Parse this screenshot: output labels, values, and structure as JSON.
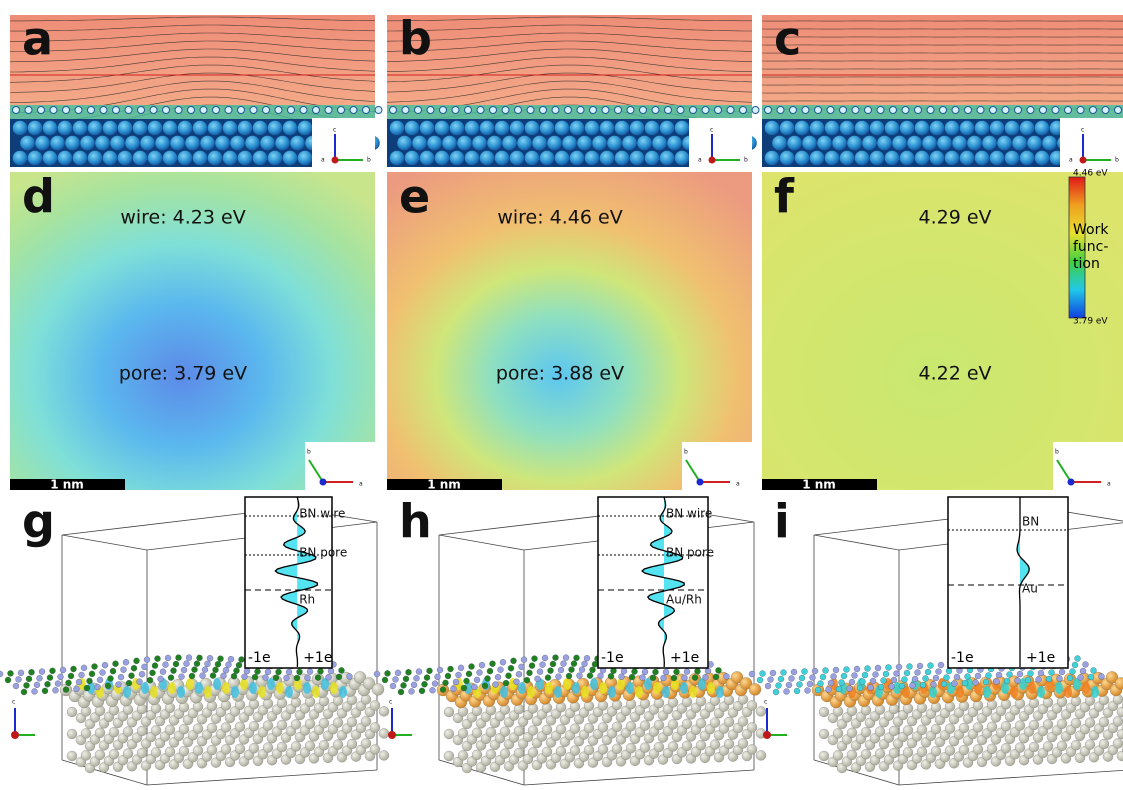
{
  "panel_labels": [
    "a",
    "b",
    "c",
    "d",
    "e",
    "f",
    "g",
    "h",
    "i"
  ],
  "work_function": {
    "values": [
      {
        "top": "wire: 4.23 eV",
        "bottom": "pore: 3.79 eV"
      },
      {
        "top": "wire: 4.46 eV",
        "bottom": "pore: 3.88 eV"
      },
      {
        "top": "4.29 eV",
        "bottom": "4.22 eV"
      }
    ],
    "scale_bars": [
      "1 nm",
      "1 nm",
      "1 nm"
    ],
    "colorbar": {
      "max": "4.46 eV",
      "min": "3.79 eV",
      "title": [
        "Work",
        "func-",
        "tion"
      ]
    }
  },
  "insets": [
    {
      "labels": [
        "BN wire",
        "BN pore",
        "Rh"
      ],
      "neg": "-1e",
      "pos": "+1e"
    },
    {
      "labels": [
        "BN wire",
        "BN pore",
        "Au/Rh"
      ],
      "neg": "-1e",
      "pos": "+1e"
    },
    {
      "labels": [
        "BN",
        "Au"
      ],
      "neg": "-1e",
      "pos": "+1e"
    }
  ],
  "compass": {
    "top": [
      "c",
      "a",
      "b"
    ],
    "middle": [
      "b",
      "a"
    ],
    "bottom": [
      "c"
    ]
  }
}
